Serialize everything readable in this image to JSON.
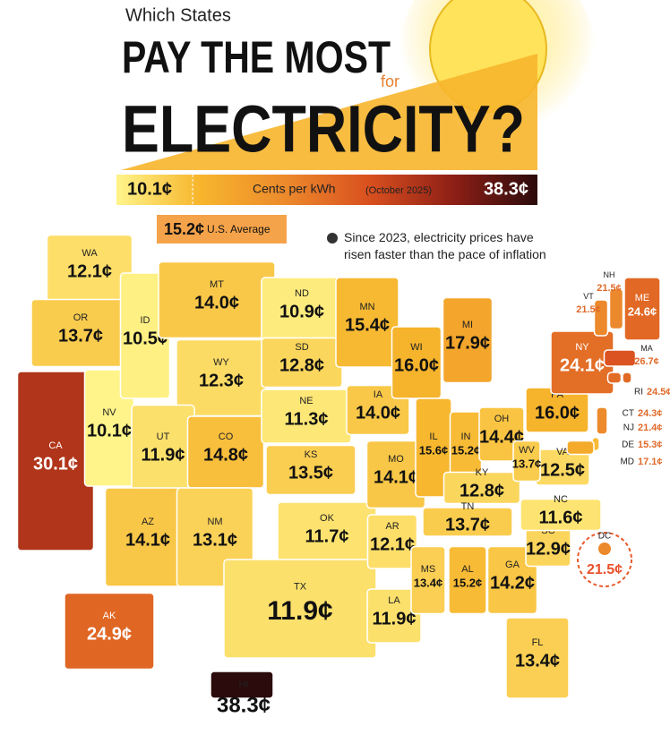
{
  "header": {
    "kicker": "Which States",
    "line1": "PAY THE MOST",
    "connector": "for",
    "line2": "ELECTRICITY?"
  },
  "legend": {
    "min": {
      "value": 10.1,
      "label": "10.1¢"
    },
    "max": {
      "value": 38.3,
      "label": "38.3¢"
    },
    "title": "Cents per kWh",
    "subtitle": "(October 2025)",
    "color_stops": [
      "#fff48a",
      "#f7b52c",
      "#ec8a2c",
      "#d9501f",
      "#8e1f16",
      "#2b0b0b"
    ]
  },
  "average": {
    "value": 15.2,
    "label": "15.2¢",
    "text": "U.S. Average"
  },
  "note": "Since 2023, electricity prices have risen faster than the pace of inflation",
  "states": [
    {
      "abbr": "WA",
      "value": 12.1,
      "label": "12.1¢"
    },
    {
      "abbr": "OR",
      "value": 13.7,
      "label": "13.7¢"
    },
    {
      "abbr": "CA",
      "value": 30.1,
      "label": "30.1¢"
    },
    {
      "abbr": "NV",
      "value": 10.1,
      "label": "10.1¢"
    },
    {
      "abbr": "ID",
      "value": 10.5,
      "label": "10.5¢"
    },
    {
      "abbr": "MT",
      "value": 14.0,
      "label": "14.0¢"
    },
    {
      "abbr": "WY",
      "value": 12.3,
      "label": "12.3¢"
    },
    {
      "abbr": "UT",
      "value": 11.9,
      "label": "11.9¢"
    },
    {
      "abbr": "CO",
      "value": 14.8,
      "label": "14.8¢"
    },
    {
      "abbr": "AZ",
      "value": 14.1,
      "label": "14.1¢"
    },
    {
      "abbr": "NM",
      "value": 13.1,
      "label": "13.1¢"
    },
    {
      "abbr": "ND",
      "value": 10.9,
      "label": "10.9¢"
    },
    {
      "abbr": "SD",
      "value": 12.8,
      "label": "12.8¢"
    },
    {
      "abbr": "NE",
      "value": 11.3,
      "label": "11.3¢"
    },
    {
      "abbr": "KS",
      "value": 13.5,
      "label": "13.5¢"
    },
    {
      "abbr": "OK",
      "value": 11.7,
      "label": "11.7¢"
    },
    {
      "abbr": "TX",
      "value": 11.9,
      "label": "11.9¢"
    },
    {
      "abbr": "MN",
      "value": 15.4,
      "label": "15.4¢"
    },
    {
      "abbr": "IA",
      "value": 14.0,
      "label": "14.0¢"
    },
    {
      "abbr": "MO",
      "value": 14.1,
      "label": "14.1¢"
    },
    {
      "abbr": "AR",
      "value": 12.1,
      "label": "12.1¢"
    },
    {
      "abbr": "LA",
      "value": 11.9,
      "label": "11.9¢"
    },
    {
      "abbr": "WI",
      "value": 16.0,
      "label": "16.0¢"
    },
    {
      "abbr": "MI",
      "value": 17.9,
      "label": "17.9¢"
    },
    {
      "abbr": "IL",
      "value": 15.6,
      "label": "15.6¢"
    },
    {
      "abbr": "IN",
      "value": 15.2,
      "label": "15.2¢"
    },
    {
      "abbr": "OH",
      "value": 14.4,
      "label": "14.4¢"
    },
    {
      "abbr": "KY",
      "value": 12.8,
      "label": "12.8¢"
    },
    {
      "abbr": "TN",
      "value": 13.7,
      "label": "13.7¢"
    },
    {
      "abbr": "MS",
      "value": 13.4,
      "label": "13.4¢"
    },
    {
      "abbr": "AL",
      "value": 15.2,
      "label": "15.2¢"
    },
    {
      "abbr": "GA",
      "value": 14.2,
      "label": "14.2¢"
    },
    {
      "abbr": "FL",
      "value": 13.4,
      "label": "13.4¢"
    },
    {
      "abbr": "SC",
      "value": 12.9,
      "label": "12.9¢"
    },
    {
      "abbr": "NC",
      "value": 11.6,
      "label": "11.6¢"
    },
    {
      "abbr": "VA",
      "value": 12.5,
      "label": "12.5¢"
    },
    {
      "abbr": "WV",
      "value": 13.7,
      "label": "13.7¢"
    },
    {
      "abbr": "PA",
      "value": 16.0,
      "label": "16.0¢"
    },
    {
      "abbr": "NY",
      "value": 24.1,
      "label": "24.1¢"
    },
    {
      "abbr": "NH",
      "value": 21.5,
      "label": "21.5¢"
    },
    {
      "abbr": "VT",
      "value": 21.5,
      "label": "21.5¢"
    },
    {
      "abbr": "ME",
      "value": 24.6,
      "label": "24.6¢"
    },
    {
      "abbr": "MA",
      "value": 26.7,
      "label": "26.7¢"
    },
    {
      "abbr": "RI",
      "value": 24.5,
      "label": "24.5¢"
    },
    {
      "abbr": "CT",
      "value": 24.3,
      "label": "24.3¢"
    },
    {
      "abbr": "NJ",
      "value": 21.4,
      "label": "21.4¢"
    },
    {
      "abbr": "DE",
      "value": 15.3,
      "label": "15.3¢"
    },
    {
      "abbr": "MD",
      "value": 17.1,
      "label": "17.1¢"
    },
    {
      "abbr": "DC",
      "value": 21.5,
      "label": "21.5¢"
    },
    {
      "abbr": "AK",
      "value": 24.9,
      "label": "24.9¢"
    },
    {
      "abbr": "HI",
      "value": 38.3,
      "label": "38.3¢"
    }
  ]
}
